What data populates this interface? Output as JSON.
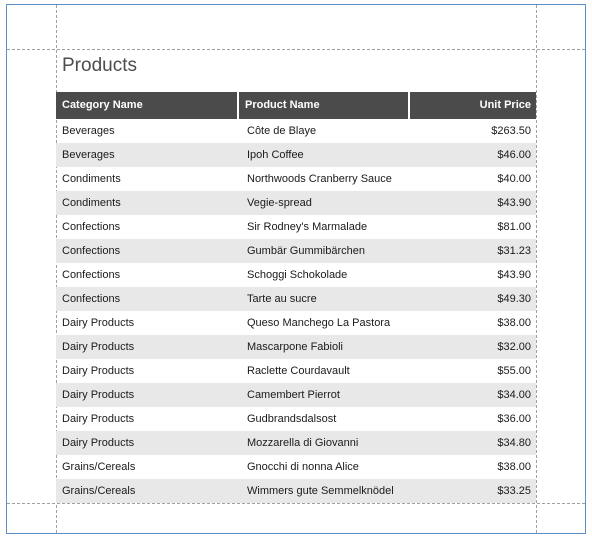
{
  "report": {
    "title": "Products",
    "columns": [
      "Category Name",
      "Product Name",
      "Unit Price"
    ],
    "rows": [
      [
        "Beverages",
        "Côte de Blaye",
        "$263.50"
      ],
      [
        "Beverages",
        "Ipoh Coffee",
        "$46.00"
      ],
      [
        "Condiments",
        "Northwoods Cranberry Sauce",
        "$40.00"
      ],
      [
        "Condiments",
        "Vegie-spread",
        "$43.90"
      ],
      [
        "Confections",
        "Sir Rodney's Marmalade",
        "$81.00"
      ],
      [
        "Confections",
        "Gumbär Gummibärchen",
        "$31.23"
      ],
      [
        "Confections",
        "Schoggi Schokolade",
        "$43.90"
      ],
      [
        "Confections",
        "Tarte au sucre",
        "$49.30"
      ],
      [
        "Dairy Products",
        "Queso Manchego La Pastora",
        "$38.00"
      ],
      [
        "Dairy Products",
        "Mascarpone Fabioli",
        "$32.00"
      ],
      [
        "Dairy Products",
        "Raclette Courdavault",
        "$55.00"
      ],
      [
        "Dairy Products",
        "Camembert Pierrot",
        "$34.00"
      ],
      [
        "Dairy Products",
        "Gudbrandsdalsost",
        "$36.00"
      ],
      [
        "Dairy Products",
        "Mozzarella di Giovanni",
        "$34.80"
      ],
      [
        "Grains/Cereals",
        "Gnocchi di nonna Alice",
        "$38.00"
      ],
      [
        "Grains/Cereals",
        "Wimmers gute Semmelknödel",
        "$33.25"
      ]
    ]
  }
}
